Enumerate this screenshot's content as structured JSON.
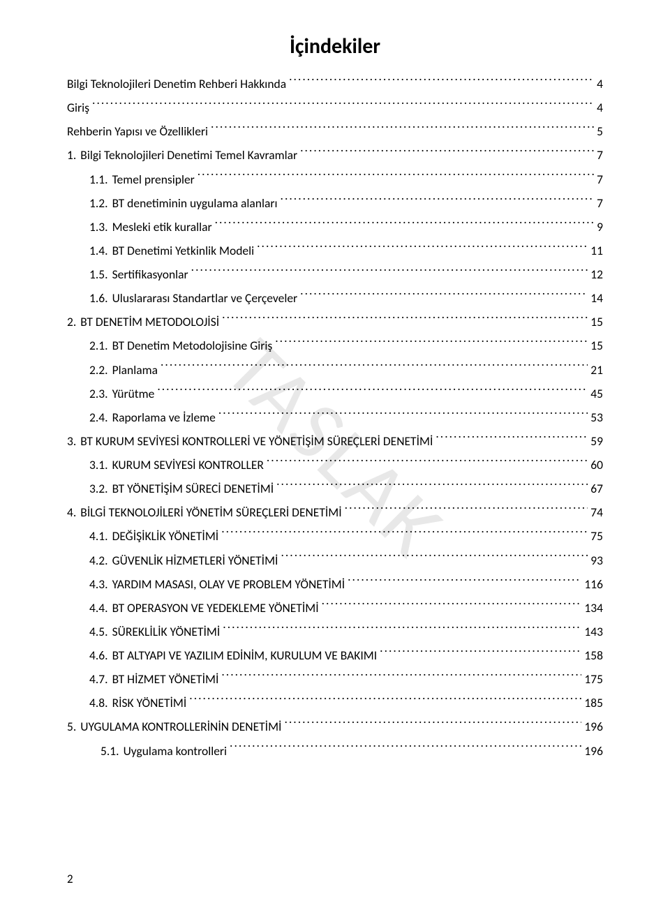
{
  "title": "İçindekiler",
  "watermark": "TASLAK",
  "page_number": "2",
  "background_color": "#ffffff",
  "text_color": "#000000",
  "watermark_color": "#e8e8e8",
  "title_fontsize": 30,
  "body_fontsize": 17.5,
  "line_height": 1.95,
  "toc": [
    {
      "indent": 0,
      "num": "",
      "text": "Bilgi Teknolojileri Denetim Rehberi Hakkında",
      "page": "4"
    },
    {
      "indent": 0,
      "num": "",
      "text": "Giriş",
      "page": "4"
    },
    {
      "indent": 0,
      "num": "",
      "text": "Rehberin Yapısı ve Özellikleri",
      "page": "5"
    },
    {
      "indent": 0,
      "num": "1.",
      "text": "Bilgi Teknolojileri Denetimi Temel Kavramlar",
      "page": "7"
    },
    {
      "indent": 1,
      "num": "1.1.",
      "text": "Temel prensipler",
      "page": "7"
    },
    {
      "indent": 1,
      "num": "1.2.",
      "text": "BT denetiminin uygulama alanları",
      "page": "7"
    },
    {
      "indent": 1,
      "num": "1.3.",
      "text": "Mesleki etik kurallar",
      "page": "9"
    },
    {
      "indent": 1,
      "num": "1.4.",
      "text": "BT Denetimi Yetkinlik Modeli",
      "page": "11"
    },
    {
      "indent": 1,
      "num": "1.5.",
      "text": "Sertifikasyonlar",
      "page": "12"
    },
    {
      "indent": 1,
      "num": "1.6.",
      "text": "Uluslararası Standartlar ve Çerçeveler",
      "page": "14"
    },
    {
      "indent": 0,
      "num": "2.",
      "text": "BT DENETİM METODOLOJİSİ",
      "page": "15"
    },
    {
      "indent": 1,
      "num": "2.1.",
      "text": "BT Denetim Metodolojisine Giriş",
      "page": "15"
    },
    {
      "indent": 1,
      "num": "2.2.",
      "text": "Planlama",
      "page": "21"
    },
    {
      "indent": 1,
      "num": "2.3.",
      "text": "Yürütme",
      "page": "45"
    },
    {
      "indent": 1,
      "num": "2.4.",
      "text": "Raporlama ve İzleme",
      "page": "53"
    },
    {
      "indent": 0,
      "num": "3.",
      "text": "BT KURUM SEVİYESİ KONTROLLERİ VE YÖNETİŞİM SÜREÇLERİ DENETİMİ",
      "page": "59"
    },
    {
      "indent": 1,
      "num": "3.1.",
      "text": "KURUM SEVİYESİ KONTROLLER",
      "page": "60"
    },
    {
      "indent": 1,
      "num": "3.2.",
      "text": "BT YÖNETİŞİM SÜRECİ DENETİMİ",
      "page": "67"
    },
    {
      "indent": 0,
      "num": "4.",
      "text": "BİLGİ TEKNOLOJİLERİ YÖNETİM SÜREÇLERİ DENETİMİ",
      "page": "74"
    },
    {
      "indent": 1,
      "num": "4.1.",
      "text": "DEĞİŞİKLİK YÖNETİMİ",
      "page": "75"
    },
    {
      "indent": 1,
      "num": "4.2.",
      "text": "GÜVENLİK HİZMETLERİ YÖNETİMİ",
      "page": "93"
    },
    {
      "indent": 1,
      "num": "4.3.",
      "text": "YARDIM MASASI, OLAY VE PROBLEM YÖNETİMİ",
      "page": "116"
    },
    {
      "indent": 1,
      "num": "4.4.",
      "text": "BT OPERASYON VE YEDEKLEME YÖNETİMİ",
      "page": "134"
    },
    {
      "indent": 1,
      "num": "4.5.",
      "text": "SÜREKLİLİK YÖNETİMİ",
      "page": "143"
    },
    {
      "indent": 1,
      "num": "4.6.",
      "text": "BT ALTYAPI VE YAZILIM EDİNİM, KURULUM VE BAKIMI",
      "page": "158"
    },
    {
      "indent": 1,
      "num": "4.7.",
      "text": "BT HİZMET YÖNETİMİ",
      "page": "175"
    },
    {
      "indent": 1,
      "num": "4.8.",
      "text": "RİSK YÖNETİMİ",
      "page": "185"
    },
    {
      "indent": 0,
      "num": "5.",
      "text": "UYGULAMA KONTROLLERİNİN DENETİMİ",
      "page": "196"
    },
    {
      "indent": 2,
      "num": "5.1.",
      "text": "Uygulama kontrolleri",
      "page": "196"
    }
  ]
}
